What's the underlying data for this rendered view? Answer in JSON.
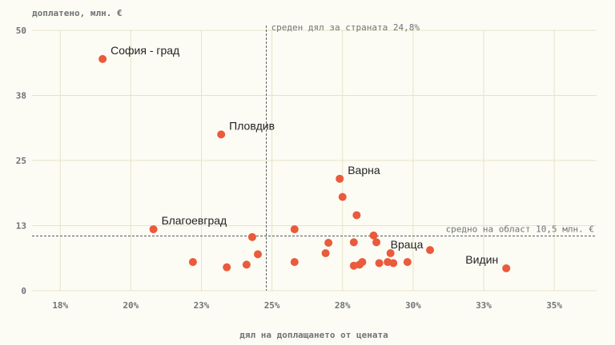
{
  "chart_data": {
    "type": "scatter",
    "ylabel": "доплатено, млн. €",
    "xlabel": "дял на доплащането от цената",
    "xlim": [
      16.5,
      36.5
    ],
    "ylim": [
      0,
      50
    ],
    "x_ticks": [
      {
        "value": 17.5,
        "label": "18%"
      },
      {
        "value": 20,
        "label": "20%"
      },
      {
        "value": 22.5,
        "label": "23%"
      },
      {
        "value": 25,
        "label": "25%"
      },
      {
        "value": 27.5,
        "label": "28%"
      },
      {
        "value": 30,
        "label": "30%"
      },
      {
        "value": 32.5,
        "label": "33%"
      },
      {
        "value": 35,
        "label": "35%"
      }
    ],
    "y_ticks": [
      {
        "value": 0,
        "label": "0"
      },
      {
        "value": 12.5,
        "label": "13"
      },
      {
        "value": 25,
        "label": "25"
      },
      {
        "value": 37.5,
        "label": "38"
      },
      {
        "value": 50,
        "label": "50"
      }
    ],
    "reference_lines": [
      {
        "axis": "x",
        "value": 24.8,
        "label": "среден дял за страната 24,8%"
      },
      {
        "axis": "y",
        "value": 10.5,
        "label": "средно на област 10,5 млн. €"
      }
    ],
    "points": [
      {
        "x": 19.0,
        "y": 44.5,
        "label": "София - град"
      },
      {
        "x": 23.2,
        "y": 30.0,
        "label": "Пловдив"
      },
      {
        "x": 27.4,
        "y": 21.5,
        "label": "Варна"
      },
      {
        "x": 27.5,
        "y": 18.0,
        "label": ""
      },
      {
        "x": 28.0,
        "y": 14.5,
        "label": ""
      },
      {
        "x": 20.8,
        "y": 11.8,
        "label": "Благоевград"
      },
      {
        "x": 24.3,
        "y": 10.3,
        "label": ""
      },
      {
        "x": 25.8,
        "y": 11.8,
        "label": ""
      },
      {
        "x": 27.0,
        "y": 9.2,
        "label": ""
      },
      {
        "x": 27.9,
        "y": 9.3,
        "label": ""
      },
      {
        "x": 28.6,
        "y": 10.6,
        "label": ""
      },
      {
        "x": 28.7,
        "y": 9.3,
        "label": ""
      },
      {
        "x": 22.2,
        "y": 5.5,
        "label": ""
      },
      {
        "x": 23.4,
        "y": 4.5,
        "label": ""
      },
      {
        "x": 24.1,
        "y": 5.0,
        "label": ""
      },
      {
        "x": 24.5,
        "y": 7.0,
        "label": ""
      },
      {
        "x": 25.8,
        "y": 5.5,
        "label": ""
      },
      {
        "x": 26.9,
        "y": 7.2,
        "label": ""
      },
      {
        "x": 27.9,
        "y": 4.8,
        "label": ""
      },
      {
        "x": 28.1,
        "y": 5.0,
        "label": ""
      },
      {
        "x": 28.2,
        "y": 5.5,
        "label": ""
      },
      {
        "x": 28.8,
        "y": 5.3,
        "label": ""
      },
      {
        "x": 29.1,
        "y": 5.5,
        "label": ""
      },
      {
        "x": 29.3,
        "y": 5.3,
        "label": ""
      },
      {
        "x": 29.2,
        "y": 7.2,
        "label": "Враца"
      },
      {
        "x": 29.8,
        "y": 5.5,
        "label": ""
      },
      {
        "x": 30.6,
        "y": 7.8,
        "label": ""
      },
      {
        "x": 33.3,
        "y": 4.3,
        "label": "Видин"
      }
    ],
    "legend": null,
    "grid": true
  },
  "colors": {
    "background": "#fdfcf4",
    "point": "#ea5a3c",
    "grid": "#e6e3c8",
    "reference_line": "#555a60"
  }
}
